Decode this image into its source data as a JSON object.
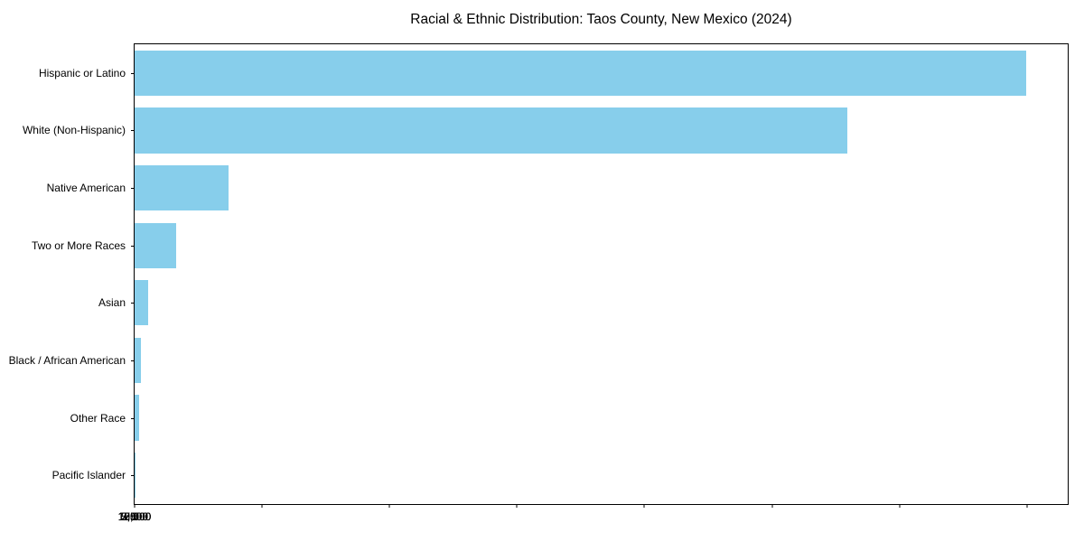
{
  "chart_data": {
    "type": "bar",
    "orientation": "horizontal",
    "title": "Racial & Ethnic Distribution: Taos County, New Mexico (2024)",
    "categories": [
      "Hispanic or Latino",
      "White (Non-Hispanic)",
      "Native American",
      "Two or More Races",
      "Asian",
      "Black / African American",
      "Other Race",
      "Pacific Islander"
    ],
    "values": [
      17480,
      13980,
      1840,
      815,
      265,
      130,
      95,
      10
    ],
    "xlabel": "",
    "ylabel": "",
    "xlim": [
      0,
      18300
    ],
    "x_ticks": [
      0,
      2500,
      5000,
      7500,
      10000,
      12500,
      15000,
      17500
    ],
    "x_tick_labels": [
      "0",
      "2,500",
      "5,000",
      "7,500",
      "10,000",
      "12,500",
      "15,000",
      "17,500"
    ],
    "bar_color": "#87CEEB",
    "background_color": "#ffffff",
    "frame_color": "#000000",
    "grid": false,
    "legend": null
  }
}
